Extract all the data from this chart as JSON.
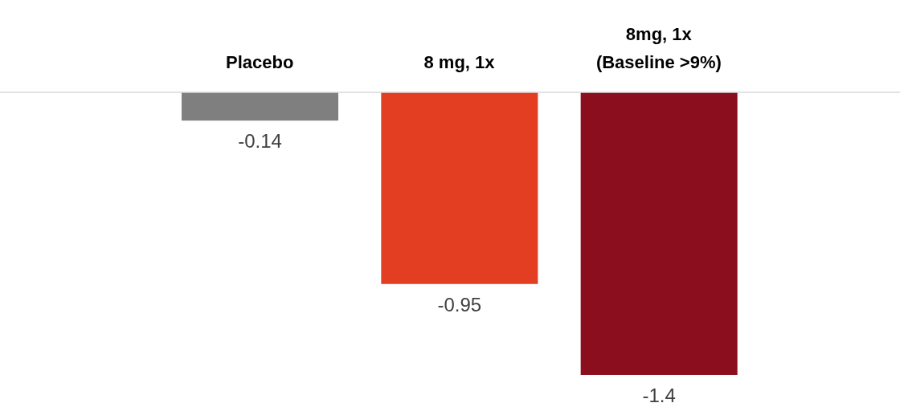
{
  "chart_data": {
    "type": "bar",
    "categories": [
      "Placebo",
      "8 mg, 1x",
      "8mg, 1x (Baseline >9%)"
    ],
    "values": [
      -0.14,
      -0.95,
      -1.4
    ],
    "colors": [
      "#7f7f7f",
      "#e33d22",
      "#8b0e1e"
    ],
    "data_labels": true,
    "grid": false,
    "legend": false
  }
}
